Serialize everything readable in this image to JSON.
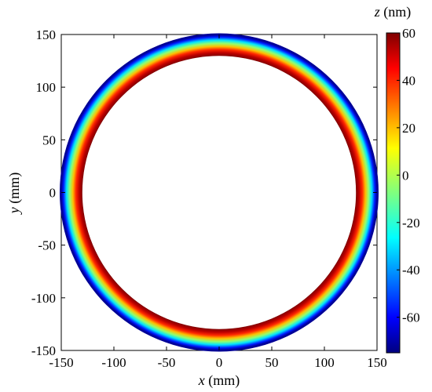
{
  "chart_data": {
    "type": "heatmap",
    "title": "",
    "xlabel": {
      "var": "x",
      "unit": " (mm)"
    },
    "ylabel": {
      "var": "y",
      "unit": " (mm)"
    },
    "xlim": [
      -150,
      150
    ],
    "ylim": [
      -150,
      150
    ],
    "xticks": [
      "-150",
      "-100",
      "-50",
      "0",
      "50",
      "100",
      "150"
    ],
    "yticks": [
      "-150",
      "-100",
      "-50",
      "0",
      "50",
      "100",
      "150"
    ],
    "grid": false,
    "annular_profile": {
      "inner_radius": 130,
      "outer_radius": 150,
      "radius": [
        130,
        133,
        136,
        139,
        142,
        145,
        148,
        150
      ],
      "z_nm": [
        60,
        52,
        38,
        18,
        -5,
        -28,
        -55,
        -72
      ]
    },
    "colorbar": {
      "label": {
        "var": "z",
        "unit": " (nm)"
      },
      "zlim": [
        -75,
        60
      ],
      "ticks": [
        "60",
        "40",
        "20",
        "0",
        "-20",
        "-40",
        "-60"
      ],
      "colormap": "jet",
      "placement": "right"
    }
  }
}
